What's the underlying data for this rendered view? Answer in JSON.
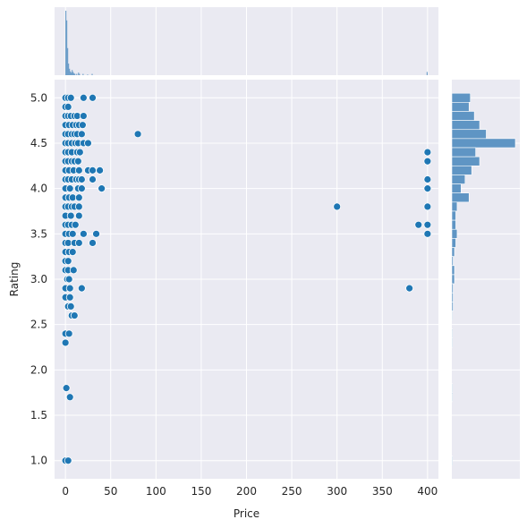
{
  "chart_data": {
    "type": "scatter",
    "title": "",
    "xlabel": "Price",
    "ylabel": "Rating",
    "xlim": [
      -12,
      412
    ],
    "ylim": [
      0.8,
      5.2
    ],
    "xticks": [
      0,
      50,
      100,
      150,
      200,
      250,
      300,
      350,
      400
    ],
    "xtick_labels": [
      "0",
      "50",
      "100",
      "150",
      "200",
      "250",
      "300",
      "350",
      "400"
    ],
    "yticks": [
      1.0,
      1.5,
      2.0,
      2.5,
      3.0,
      3.5,
      4.0,
      4.5,
      5.0
    ],
    "ytick_labels": [
      "1.0",
      "1.5",
      "2.0",
      "2.5",
      "3.0",
      "3.5",
      "4.0",
      "4.5",
      "5.0"
    ],
    "grid": true,
    "colors": {
      "background": "#eaeaf2",
      "grid": "#ffffff",
      "point": "#1f77b4",
      "point_edge": "#ffffff",
      "hist": "#5f95c4"
    },
    "points": [
      {
        "x": 0,
        "y": 5.0
      },
      {
        "x": 3,
        "y": 5.0
      },
      {
        "x": 6,
        "y": 5.0
      },
      {
        "x": 20,
        "y": 5.0
      },
      {
        "x": 30,
        "y": 5.0
      },
      {
        "x": 0,
        "y": 4.9
      },
      {
        "x": 3,
        "y": 4.9
      },
      {
        "x": 0,
        "y": 4.8
      },
      {
        "x": 3,
        "y": 4.8
      },
      {
        "x": 6,
        "y": 4.8
      },
      {
        "x": 10,
        "y": 4.8
      },
      {
        "x": 13,
        "y": 4.8
      },
      {
        "x": 20,
        "y": 4.8
      },
      {
        "x": 0,
        "y": 4.7
      },
      {
        "x": 4,
        "y": 4.7
      },
      {
        "x": 8,
        "y": 4.7
      },
      {
        "x": 12,
        "y": 4.7
      },
      {
        "x": 15,
        "y": 4.7
      },
      {
        "x": 19,
        "y": 4.7
      },
      {
        "x": 0,
        "y": 4.6
      },
      {
        "x": 3,
        "y": 4.6
      },
      {
        "x": 7,
        "y": 4.6
      },
      {
        "x": 10,
        "y": 4.6
      },
      {
        "x": 13,
        "y": 4.6
      },
      {
        "x": 18,
        "y": 4.6
      },
      {
        "x": 80,
        "y": 4.6
      },
      {
        "x": 0,
        "y": 4.5
      },
      {
        "x": 3,
        "y": 4.5
      },
      {
        "x": 7,
        "y": 4.5
      },
      {
        "x": 11,
        "y": 4.5
      },
      {
        "x": 14,
        "y": 4.5
      },
      {
        "x": 20,
        "y": 4.5
      },
      {
        "x": 25,
        "y": 4.5
      },
      {
        "x": 0,
        "y": 4.4
      },
      {
        "x": 3,
        "y": 4.4
      },
      {
        "x": 7,
        "y": 4.4
      },
      {
        "x": 13,
        "y": 4.4
      },
      {
        "x": 16,
        "y": 4.4
      },
      {
        "x": 400,
        "y": 4.4
      },
      {
        "x": 0,
        "y": 4.3
      },
      {
        "x": 3,
        "y": 4.3
      },
      {
        "x": 7,
        "y": 4.3
      },
      {
        "x": 10,
        "y": 4.3
      },
      {
        "x": 14,
        "y": 4.3
      },
      {
        "x": 400,
        "y": 4.3
      },
      {
        "x": 0,
        "y": 4.2
      },
      {
        "x": 4,
        "y": 4.2
      },
      {
        "x": 9,
        "y": 4.2
      },
      {
        "x": 15,
        "y": 4.2
      },
      {
        "x": 25,
        "y": 4.2
      },
      {
        "x": 30,
        "y": 4.2
      },
      {
        "x": 38,
        "y": 4.2
      },
      {
        "x": 0,
        "y": 4.1
      },
      {
        "x": 3,
        "y": 4.1
      },
      {
        "x": 7,
        "y": 4.1
      },
      {
        "x": 12,
        "y": 4.1
      },
      {
        "x": 15,
        "y": 4.1
      },
      {
        "x": 18,
        "y": 4.1
      },
      {
        "x": 30,
        "y": 4.1
      },
      {
        "x": 400,
        "y": 4.1
      },
      {
        "x": 0,
        "y": 4.0
      },
      {
        "x": 5,
        "y": 4.0
      },
      {
        "x": 14,
        "y": 4.0
      },
      {
        "x": 18,
        "y": 4.0
      },
      {
        "x": 40,
        "y": 4.0
      },
      {
        "x": 400,
        "y": 4.0
      },
      {
        "x": 0,
        "y": 3.9
      },
      {
        "x": 4,
        "y": 3.9
      },
      {
        "x": 8,
        "y": 3.9
      },
      {
        "x": 15,
        "y": 3.9
      },
      {
        "x": 0,
        "y": 3.8
      },
      {
        "x": 3,
        "y": 3.8
      },
      {
        "x": 7,
        "y": 3.8
      },
      {
        "x": 10,
        "y": 3.8
      },
      {
        "x": 15,
        "y": 3.8
      },
      {
        "x": 300,
        "y": 3.8
      },
      {
        "x": 400,
        "y": 3.8
      },
      {
        "x": 0,
        "y": 3.7
      },
      {
        "x": 6,
        "y": 3.7
      },
      {
        "x": 15,
        "y": 3.7
      },
      {
        "x": 0,
        "y": 3.6
      },
      {
        "x": 3,
        "y": 3.6
      },
      {
        "x": 7,
        "y": 3.6
      },
      {
        "x": 11,
        "y": 3.6
      },
      {
        "x": 390,
        "y": 3.6
      },
      {
        "x": 400,
        "y": 3.6
      },
      {
        "x": 0,
        "y": 3.5
      },
      {
        "x": 4,
        "y": 3.5
      },
      {
        "x": 8,
        "y": 3.5
      },
      {
        "x": 20,
        "y": 3.5
      },
      {
        "x": 34,
        "y": 3.5
      },
      {
        "x": 400,
        "y": 3.5
      },
      {
        "x": 0,
        "y": 3.4
      },
      {
        "x": 3,
        "y": 3.4
      },
      {
        "x": 10,
        "y": 3.4
      },
      {
        "x": 15,
        "y": 3.4
      },
      {
        "x": 30,
        "y": 3.4
      },
      {
        "x": 0,
        "y": 3.3
      },
      {
        "x": 4,
        "y": 3.3
      },
      {
        "x": 8,
        "y": 3.3
      },
      {
        "x": 0,
        "y": 3.2
      },
      {
        "x": 3,
        "y": 3.2
      },
      {
        "x": 0,
        "y": 3.1
      },
      {
        "x": 3,
        "y": 3.1
      },
      {
        "x": 9,
        "y": 3.1
      },
      {
        "x": 2,
        "y": 3.0
      },
      {
        "x": 4,
        "y": 3.0
      },
      {
        "x": 0,
        "y": 2.9
      },
      {
        "x": 5,
        "y": 2.9
      },
      {
        "x": 18,
        "y": 2.9
      },
      {
        "x": 380,
        "y": 2.9
      },
      {
        "x": 0,
        "y": 2.8
      },
      {
        "x": 5,
        "y": 2.8
      },
      {
        "x": 3,
        "y": 2.7
      },
      {
        "x": 6,
        "y": 2.7
      },
      {
        "x": 7,
        "y": 2.6
      },
      {
        "x": 10,
        "y": 2.6
      },
      {
        "x": 0,
        "y": 2.4
      },
      {
        "x": 4,
        "y": 2.4
      },
      {
        "x": 0,
        "y": 2.3
      },
      {
        "x": 1,
        "y": 1.8
      },
      {
        "x": 5,
        "y": 1.7
      },
      {
        "x": 0,
        "y": 1.0
      },
      {
        "x": 3,
        "y": 1.0
      }
    ],
    "marginal_x_hist": [
      {
        "x0": 0,
        "x1": 1,
        "count": 100
      },
      {
        "x0": 1,
        "x1": 2,
        "count": 85
      },
      {
        "x0": 2,
        "x1": 3,
        "count": 42
      },
      {
        "x0": 3,
        "x1": 4,
        "count": 18
      },
      {
        "x0": 4,
        "x1": 5,
        "count": 10
      },
      {
        "x0": 5,
        "x1": 6,
        "count": 6
      },
      {
        "x0": 6,
        "x1": 7,
        "count": 4
      },
      {
        "x0": 7,
        "x1": 8,
        "count": 8
      },
      {
        "x0": 8,
        "x1": 9,
        "count": 5
      },
      {
        "x0": 9,
        "x1": 10,
        "count": 3
      },
      {
        "x0": 10,
        "x1": 11,
        "count": 2
      },
      {
        "x0": 12,
        "x1": 13,
        "count": 2
      },
      {
        "x0": 14,
        "x1": 15,
        "count": 4
      },
      {
        "x0": 15,
        "x1": 16,
        "count": 2
      },
      {
        "x0": 19,
        "x1": 20,
        "count": 2
      },
      {
        "x0": 24,
        "x1": 25,
        "count": 1
      },
      {
        "x0": 29,
        "x1": 30,
        "count": 2
      },
      {
        "x0": 399,
        "x1": 400,
        "count": 5
      }
    ],
    "marginal_y_hist": [
      {
        "y0": 4.95,
        "y1": 5.05,
        "count": 14
      },
      {
        "y0": 4.85,
        "y1": 4.95,
        "count": 13
      },
      {
        "y0": 4.75,
        "y1": 4.85,
        "count": 17
      },
      {
        "y0": 4.65,
        "y1": 4.75,
        "count": 21
      },
      {
        "y0": 4.55,
        "y1": 4.65,
        "count": 26
      },
      {
        "y0": 4.45,
        "y1": 4.55,
        "count": 48
      },
      {
        "y0": 4.35,
        "y1": 4.45,
        "count": 18
      },
      {
        "y0": 4.25,
        "y1": 4.35,
        "count": 21
      },
      {
        "y0": 4.15,
        "y1": 4.25,
        "count": 15
      },
      {
        "y0": 4.05,
        "y1": 4.15,
        "count": 10
      },
      {
        "y0": 3.95,
        "y1": 4.05,
        "count": 7
      },
      {
        "y0": 3.85,
        "y1": 3.95,
        "count": 13
      },
      {
        "y0": 3.75,
        "y1": 3.85,
        "count": 4
      },
      {
        "y0": 3.65,
        "y1": 3.75,
        "count": 3
      },
      {
        "y0": 3.55,
        "y1": 3.65,
        "count": 3
      },
      {
        "y0": 3.45,
        "y1": 3.55,
        "count": 4
      },
      {
        "y0": 3.35,
        "y1": 3.45,
        "count": 3
      },
      {
        "y0": 3.25,
        "y1": 3.35,
        "count": 2
      },
      {
        "y0": 3.15,
        "y1": 3.25,
        "count": 1
      },
      {
        "y0": 3.05,
        "y1": 3.15,
        "count": 2
      },
      {
        "y0": 2.95,
        "y1": 3.05,
        "count": 2
      },
      {
        "y0": 2.85,
        "y1": 2.95,
        "count": 1
      },
      {
        "y0": 2.75,
        "y1": 2.85,
        "count": 1
      },
      {
        "y0": 2.65,
        "y1": 2.75,
        "count": 1
      },
      {
        "y0": 2.55,
        "y1": 2.65,
        "count": 0.5
      },
      {
        "y0": 2.35,
        "y1": 2.45,
        "count": 0.5
      },
      {
        "y0": 2.25,
        "y1": 2.35,
        "count": 0.5
      },
      {
        "y0": 1.75,
        "y1": 1.85,
        "count": 0.5
      },
      {
        "y0": 1.65,
        "y1": 1.75,
        "count": 0.5
      },
      {
        "y0": 0.95,
        "y1": 1.05,
        "count": 0.5
      }
    ]
  }
}
